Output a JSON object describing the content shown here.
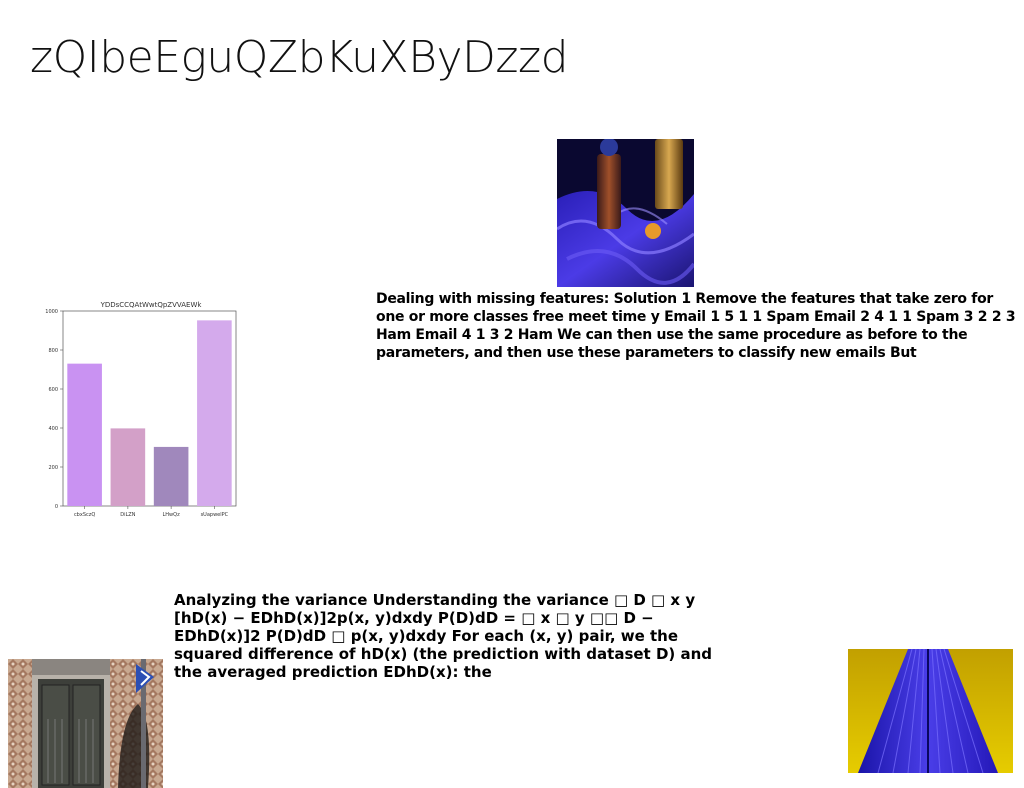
{
  "slide": {
    "title": "zQIbeEguQZbKuXByDzzd",
    "text_block_1": "Dealing with missing features: Solution 1 Remove the features that take zero for one or more classes free meet time y Email 1 5 1 1 Spam Email 2 4 1 1 Spam 3 2 2 3 Ham Email 4 1 3 2 Ham We can then use the same procedure as before to the parameters, and then use these parameters to classify new emails But",
    "text_block_2": "Analyzing the variance Understanding the variance □ D □ x y [hD(x) − EDhD(x)]2p(x, y)dxdy P(D)dD = □ x □ y □□ D − EDhD(x)]2 P(D)dD □ p(x, y)dxdy For each (x, y) pair, we the squared difference of hD(x) (the prediction with dataset D) and the averaged prediction EDhD(x): the"
  },
  "images": {
    "bottles": "photo of glass bottles on blue cloth",
    "door": "photo of ornate door with street sign",
    "tower": "photo of blue glass tower against yellow sky"
  },
  "chart_data": {
    "type": "bar",
    "title": "YDDsCCQAtWwtQpZVVAEWk",
    "categories": [
      "cbxSczQ",
      "DiLZN",
      "LHwQz",
      "sUapwelPC"
    ],
    "values": [
      730,
      398,
      303,
      952
    ],
    "colors": [
      "#c992f2",
      "#d3a0c8",
      "#a088bc",
      "#d4aaec"
    ],
    "ylim": [
      0,
      1000
    ],
    "yticks": [
      0,
      200,
      400,
      600,
      800,
      1000
    ],
    "xlabel": "",
    "ylabel": "",
    "grid": false
  }
}
